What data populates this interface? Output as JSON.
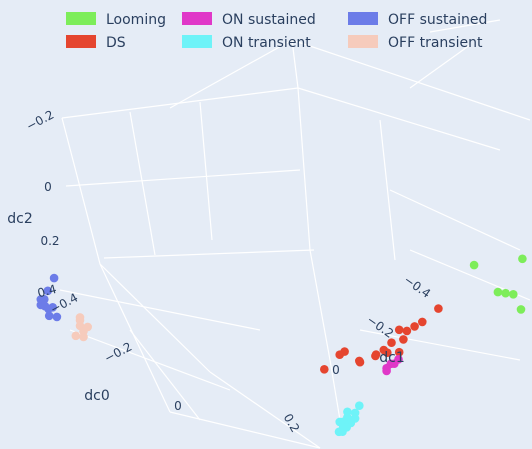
{
  "chart_data": {
    "type": "scatter",
    "projection": "3d",
    "title": "",
    "legend": {
      "placement": "top",
      "entries": [
        {
          "name": "Looming",
          "color": "#7ded5a"
        },
        {
          "name": "DS",
          "color": "#e5452f"
        },
        {
          "name": "ON sustained",
          "color": "#e038c8"
        },
        {
          "name": "ON transient",
          "color": "#6ef3f8"
        },
        {
          "name": "OFF sustained",
          "color": "#6c7ce8"
        },
        {
          "name": "OFF transient",
          "color": "#f6cbbc"
        }
      ]
    },
    "axes": {
      "dc0": {
        "title": "dc0",
        "ticks": [
          "−0.4",
          "−0.2",
          "0",
          "0.2"
        ]
      },
      "dc1": {
        "title": "dc1",
        "ticks": [
          "−0.4",
          "−0.2",
          "0"
        ]
      },
      "dc2": {
        "title": "dc2",
        "ticks": [
          "−0.2",
          "0",
          "0.2",
          "0.4"
        ]
      }
    },
    "series": [
      {
        "name": "Looming",
        "color": "#7ded5a",
        "points": [
          {
            "dc0": 0.05,
            "dc1": -0.38,
            "dc2": -0.05
          },
          {
            "dc0": 0.08,
            "dc1": -0.47,
            "dc2": -0.08
          },
          {
            "dc0": 0.07,
            "dc1": -0.42,
            "dc2": 0.05
          },
          {
            "dc0": 0.08,
            "dc1": -0.43,
            "dc2": 0.06
          },
          {
            "dc0": 0.09,
            "dc1": -0.44,
            "dc2": 0.07
          },
          {
            "dc0": 0.1,
            "dc1": -0.45,
            "dc2": 0.13
          }
        ]
      },
      {
        "name": "DS",
        "color": "#e5452f",
        "points": [
          {
            "dc0": 0.02,
            "dc1": -0.32,
            "dc2": 0.1
          },
          {
            "dc0": 0.01,
            "dc1": -0.29,
            "dc2": 0.15
          },
          {
            "dc0": 0.0,
            "dc1": -0.28,
            "dc2": 0.16
          },
          {
            "dc0": -0.01,
            "dc1": -0.27,
            "dc2": 0.17
          },
          {
            "dc0": -0.02,
            "dc1": -0.26,
            "dc2": 0.16
          },
          {
            "dc0": -0.02,
            "dc1": -0.27,
            "dc2": 0.19
          },
          {
            "dc0": -0.03,
            "dc1": -0.25,
            "dc2": 0.2
          },
          {
            "dc0": -0.04,
            "dc1": -0.24,
            "dc2": 0.22
          },
          {
            "dc0": -0.05,
            "dc1": -0.23,
            "dc2": 0.23
          },
          {
            "dc0": -0.03,
            "dc1": -0.24,
            "dc2": 0.24
          },
          {
            "dc0": -0.02,
            "dc1": -0.26,
            "dc2": 0.24
          },
          {
            "dc0": -0.04,
            "dc1": -0.22,
            "dc2": 0.25
          },
          {
            "dc0": -0.06,
            "dc1": -0.2,
            "dc2": 0.26
          },
          {
            "dc0": -0.08,
            "dc1": -0.18,
            "dc2": 0.21
          },
          {
            "dc0": -0.07,
            "dc1": -0.16,
            "dc2": 0.24
          },
          {
            "dc0": -0.05,
            "dc1": -0.19,
            "dc2": 0.27
          },
          {
            "dc0": -0.09,
            "dc1": -0.14,
            "dc2": 0.28
          }
        ]
      },
      {
        "name": "ON sustained",
        "color": "#e038c8",
        "points": [
          {
            "dc0": -0.01,
            "dc1": -0.25,
            "dc2": 0.28
          },
          {
            "dc0": -0.02,
            "dc1": -0.24,
            "dc2": 0.29
          },
          {
            "dc0": -0.01,
            "dc1": -0.24,
            "dc2": 0.3
          },
          {
            "dc0": -0.02,
            "dc1": -0.23,
            "dc2": 0.31
          },
          {
            "dc0": -0.02,
            "dc1": -0.23,
            "dc2": 0.32
          }
        ]
      },
      {
        "name": "ON transient",
        "color": "#6ef3f8",
        "points": [
          {
            "dc0": -0.05,
            "dc1": -0.19,
            "dc2": 0.43
          },
          {
            "dc0": -0.06,
            "dc1": -0.17,
            "dc2": 0.45
          },
          {
            "dc0": -0.05,
            "dc1": -0.18,
            "dc2": 0.46
          },
          {
            "dc0": -0.06,
            "dc1": -0.17,
            "dc2": 0.47
          },
          {
            "dc0": -0.05,
            "dc1": -0.18,
            "dc2": 0.48
          },
          {
            "dc0": -0.07,
            "dc1": -0.16,
            "dc2": 0.48
          },
          {
            "dc0": -0.06,
            "dc1": -0.16,
            "dc2": 0.49
          },
          {
            "dc0": -0.05,
            "dc1": -0.17,
            "dc2": 0.5
          },
          {
            "dc0": -0.06,
            "dc1": -0.16,
            "dc2": 0.51
          },
          {
            "dc0": -0.05,
            "dc1": -0.16,
            "dc2": 0.52
          },
          {
            "dc0": -0.06,
            "dc1": -0.15,
            "dc2": 0.53
          },
          {
            "dc0": -0.05,
            "dc1": -0.15,
            "dc2": 0.54
          }
        ]
      },
      {
        "name": "OFF sustained",
        "color": "#6c7ce8",
        "points": [
          {
            "dc0": -0.41,
            "dc1": 0.23,
            "dc2": -0.08
          },
          {
            "dc0": -0.42,
            "dc1": 0.24,
            "dc2": -0.09
          },
          {
            "dc0": -0.41,
            "dc1": 0.24,
            "dc2": -0.11
          },
          {
            "dc0": -0.42,
            "dc1": 0.25,
            "dc2": -0.12
          },
          {
            "dc0": -0.41,
            "dc1": 0.25,
            "dc2": -0.1
          },
          {
            "dc0": -0.42,
            "dc1": 0.26,
            "dc2": -0.14
          },
          {
            "dc0": -0.42,
            "dc1": 0.26,
            "dc2": -0.12
          },
          {
            "dc0": -0.41,
            "dc1": 0.26,
            "dc2": -0.13
          },
          {
            "dc0": -0.4,
            "dc1": 0.26,
            "dc2": -0.15
          },
          {
            "dc0": -0.37,
            "dc1": 0.27,
            "dc2": -0.16
          }
        ]
      },
      {
        "name": "OFF transient",
        "color": "#f6cbbc",
        "points": [
          {
            "dc0": -0.38,
            "dc1": 0.2,
            "dc2": -0.06
          },
          {
            "dc0": -0.38,
            "dc1": 0.2,
            "dc2": -0.05
          },
          {
            "dc0": -0.38,
            "dc1": 0.2,
            "dc2": -0.03
          },
          {
            "dc0": -0.37,
            "dc1": 0.19,
            "dc2": -0.02
          },
          {
            "dc0": -0.37,
            "dc1": 0.2,
            "dc2": 0.0
          },
          {
            "dc0": -0.38,
            "dc1": 0.21,
            "dc2": 0.01
          },
          {
            "dc0": -0.37,
            "dc1": 0.2,
            "dc2": 0.02
          }
        ]
      }
    ]
  }
}
